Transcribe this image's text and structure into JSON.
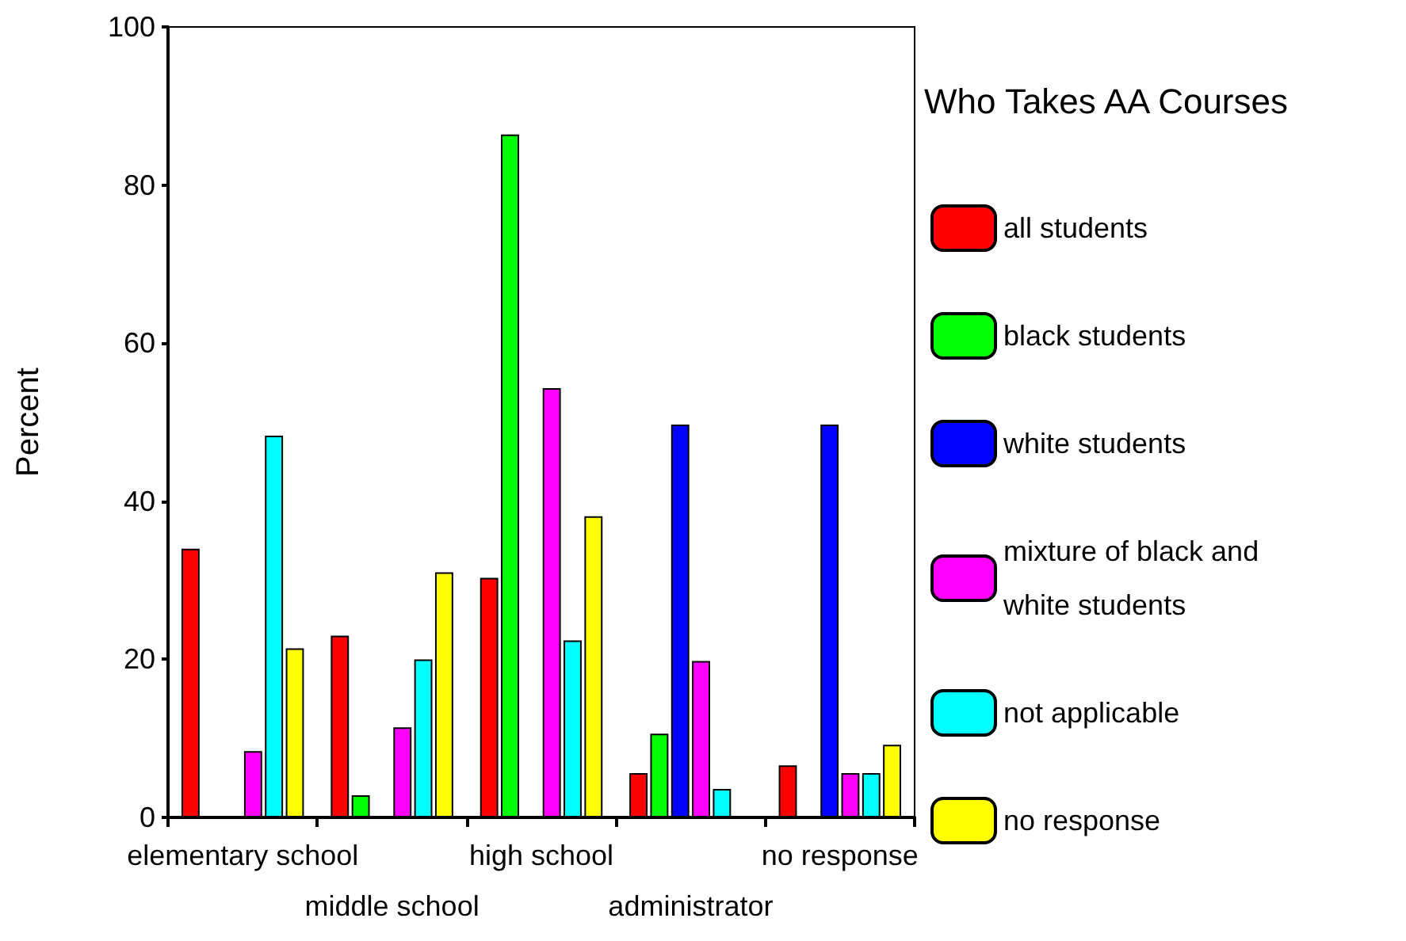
{
  "chart_data": {
    "type": "bar",
    "ylabel": "Percent",
    "legend_title": "Who Takes AA Courses",
    "legend": "right",
    "categories": [
      "elementary school",
      "middle school",
      "high school",
      "administrator",
      "no response"
    ],
    "ylim": [
      0,
      100
    ],
    "yticks": [
      0,
      20,
      40,
      60,
      80,
      100
    ],
    "grid": false,
    "series": [
      {
        "name": "all students",
        "color": "#ff0000",
        "values": [
          34,
          23,
          30.3,
          5.6,
          6.6
        ]
      },
      {
        "name": "black students",
        "color": "#00ff00",
        "values": [
          0,
          2.8,
          86.4,
          10.6,
          0
        ]
      },
      {
        "name": "white students",
        "color": "#0000ff",
        "values": [
          0,
          0,
          0,
          49.7,
          49.7
        ]
      },
      {
        "name": "mixture of black and white students",
        "color": "#ff00ff",
        "values": [
          8.4,
          11.4,
          54.3,
          19.8,
          5.6
        ]
      },
      {
        "name": "not applicable",
        "color": "#00ffff",
        "values": [
          48.3,
          20,
          22.4,
          3.6,
          5.6
        ]
      },
      {
        "name": "no response",
        "color": "#ffff00",
        "values": [
          21.4,
          31,
          38.1,
          0,
          9.2
        ]
      }
    ]
  }
}
